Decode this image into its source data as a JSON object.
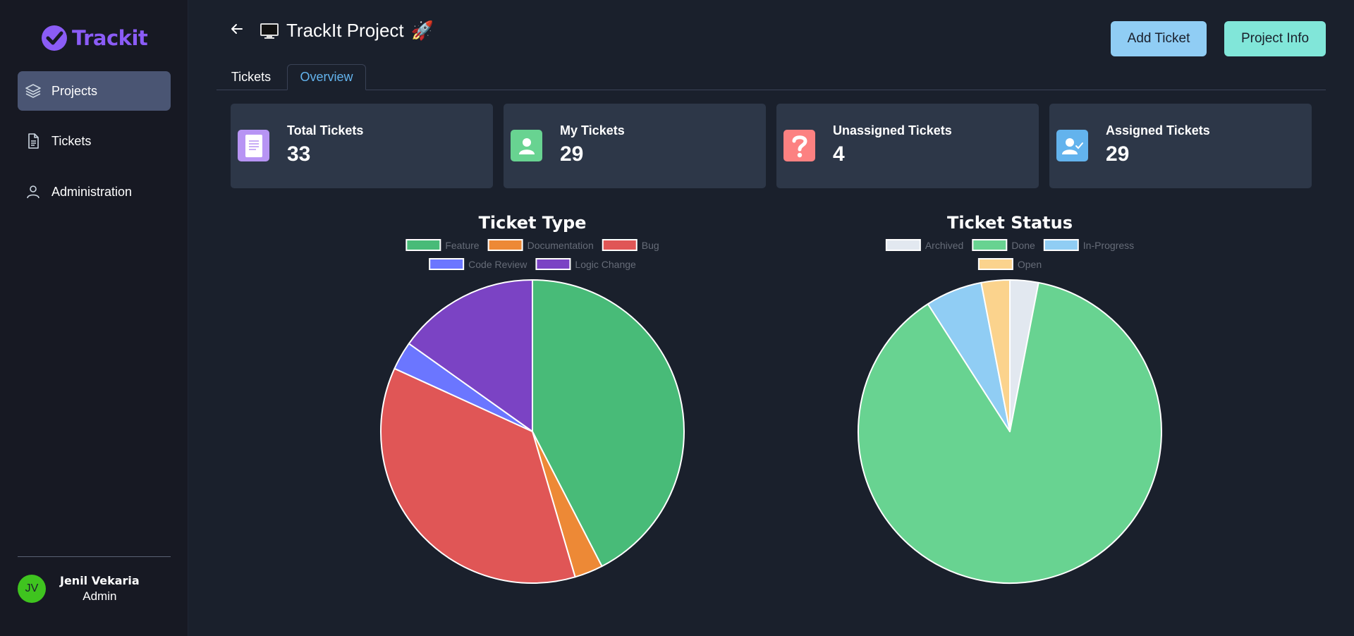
{
  "app": {
    "name": "Trackit",
    "brand_color": "#8b5cf6"
  },
  "sidebar": {
    "items": [
      {
        "label": "Projects",
        "icon": "layers-icon",
        "active": true
      },
      {
        "label": "Tickets",
        "icon": "document-icon",
        "active": false
      },
      {
        "label": "Administration",
        "icon": "user-icon",
        "active": false
      }
    ]
  },
  "user": {
    "initials": "JV",
    "name": "Jenil Vekaria",
    "role": "Admin"
  },
  "header": {
    "title": "TrackIt Project",
    "title_icon": "monitor-icon",
    "title_emoji": "🚀",
    "add_ticket_label": "Add Ticket",
    "project_info_label": "Project Info"
  },
  "tabs": [
    {
      "label": "Tickets",
      "active": false
    },
    {
      "label": "Overview",
      "active": true
    }
  ],
  "stats": [
    {
      "label": "Total Tickets",
      "value": "33",
      "icon": "document-icon",
      "color": "#b794f4"
    },
    {
      "label": "My Tickets",
      "value": "29",
      "icon": "user-icon",
      "color": "#68d391"
    },
    {
      "label": "Unassigned Tickets",
      "value": "4",
      "icon": "question-icon",
      "color": "#fc8181"
    },
    {
      "label": "Assigned Tickets",
      "value": "29",
      "icon": "user-check-icon",
      "color": "#63b3ed"
    }
  ],
  "chart_data": [
    {
      "type": "pie",
      "title": "Ticket Type",
      "categories": [
        "Feature",
        "Documentation",
        "Bug",
        "Code Review",
        "Logic Change"
      ],
      "values": [
        14,
        1,
        12,
        1,
        5
      ],
      "colors": [
        "#48bb78",
        "#ed8936",
        "#e05656",
        "#6b76ff",
        "#7b43c4"
      ],
      "legend": "top"
    },
    {
      "type": "pie",
      "title": "Ticket Status",
      "categories": [
        "Archived",
        "Done",
        "In-Progress",
        "Open"
      ],
      "values": [
        1,
        29,
        2,
        1
      ],
      "colors": [
        "#e2e8f0",
        "#68d391",
        "#90cdf4",
        "#fbd38d"
      ],
      "legend": "top"
    }
  ]
}
